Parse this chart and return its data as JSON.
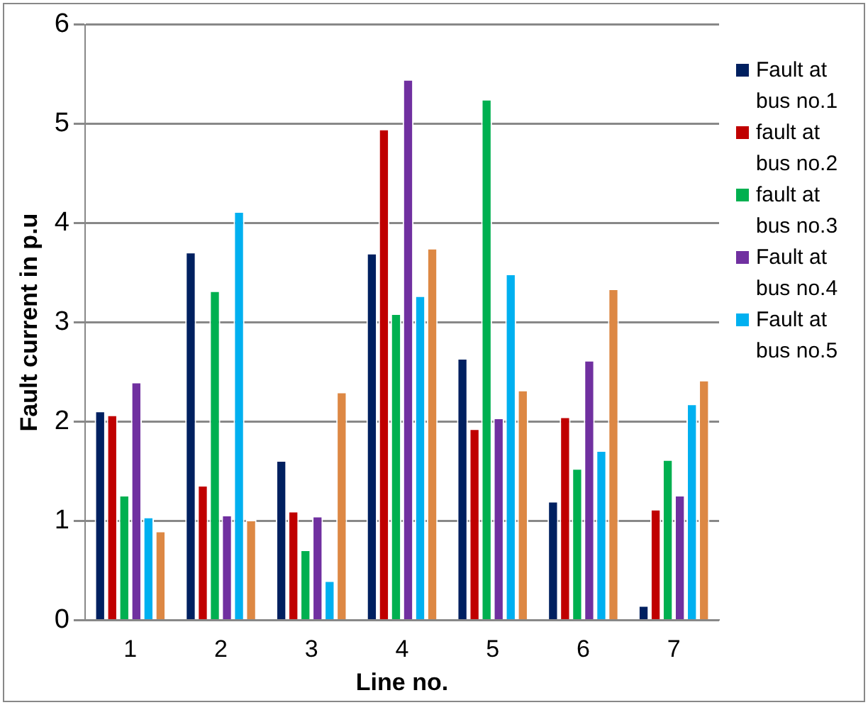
{
  "chart_data": {
    "type": "bar",
    "xlabel": "Line no.",
    "ylabel": "Fault current in p.u",
    "categories": [
      "1",
      "2",
      "3",
      "4",
      "5",
      "6",
      "7"
    ],
    "series": [
      {
        "name": "Fault at bus no.1",
        "color": "#002060",
        "values": [
          2.11,
          3.71,
          1.61,
          3.7,
          2.64,
          1.2,
          0.15
        ]
      },
      {
        "name": "fault at bus no.2",
        "color": "#c00000",
        "values": [
          2.07,
          1.36,
          1.1,
          4.95,
          1.93,
          2.05,
          1.12
        ]
      },
      {
        "name": "fault at bus no.3",
        "color": "#00b050",
        "values": [
          1.26,
          3.32,
          0.71,
          3.09,
          5.25,
          1.53,
          1.62
        ]
      },
      {
        "name": "Fault at bus no.4",
        "color": "#7030a0",
        "values": [
          2.4,
          1.06,
          1.05,
          5.45,
          2.04,
          2.62,
          1.26
        ]
      },
      {
        "name": "Fault at bus no.5",
        "color": "#00b0f0",
        "values": [
          1.04,
          4.12,
          0.4,
          3.27,
          3.49,
          1.71,
          2.18
        ]
      },
      {
        "color": "#dd8844",
        "values": [
          0.9,
          1.01,
          2.3,
          3.75,
          2.32,
          3.34,
          2.42
        ]
      }
    ],
    "ylim": [
      0,
      6
    ],
    "yticks": [
      0,
      1,
      2,
      3,
      4,
      5,
      6
    ],
    "grid": "y",
    "legend": "right"
  }
}
